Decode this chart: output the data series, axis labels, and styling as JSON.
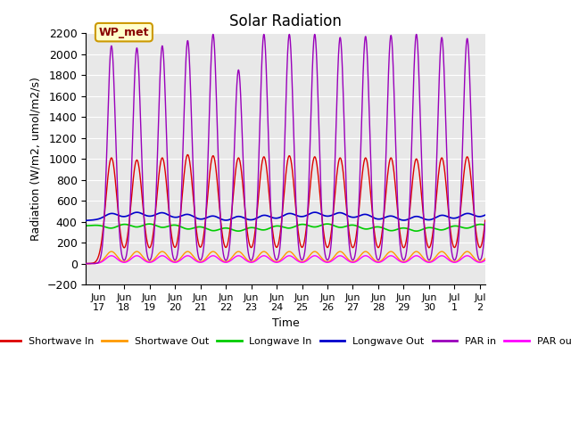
{
  "title": "Solar Radiation",
  "xlabel": "Time",
  "ylabel": "Radiation (W/m2, umol/m2/s)",
  "ylim": [
    -200,
    2200
  ],
  "yticks": [
    -200,
    0,
    200,
    400,
    600,
    800,
    1000,
    1200,
    1400,
    1600,
    1800,
    2000,
    2200
  ],
  "bg_color": "#ffffff",
  "plot_bg_color": "#e8e8e8",
  "grid_color": "#ffffff",
  "start_day": 16.5,
  "end_day": 32.2,
  "xtick_labels": [
    "Jun 17",
    "Jun 18",
    "Jun 19",
    "Jun 20",
    "Jun 21",
    "Jun 22",
    "Jun 23",
    "Jun 24",
    "Jun 25",
    "Jun 26",
    "Jun 27",
    "Jun 28",
    "Jun 29",
    "Jun 30",
    "Jul 1",
    "Jul 2"
  ],
  "xtick_positions": [
    17,
    18,
    19,
    20,
    21,
    22,
    23,
    24,
    25,
    26,
    27,
    28,
    29,
    30,
    31,
    32
  ],
  "series": {
    "shortwave_in": {
      "color": "#dd0000",
      "label": "Shortwave In"
    },
    "shortwave_out": {
      "color": "#ff9900",
      "label": "Shortwave Out"
    },
    "longwave_in": {
      "color": "#00cc00",
      "label": "Longwave In"
    },
    "longwave_out": {
      "color": "#0000cc",
      "label": "Longwave Out"
    },
    "par_in": {
      "color": "#9900bb",
      "label": "PAR in"
    },
    "par_out": {
      "color": "#ff00ff",
      "label": "PAR out"
    }
  },
  "annotation_text": "WP_met",
  "annotation_color": "#880000",
  "annotation_bg": "#ffffcc",
  "annotation_border": "#cc9900"
}
